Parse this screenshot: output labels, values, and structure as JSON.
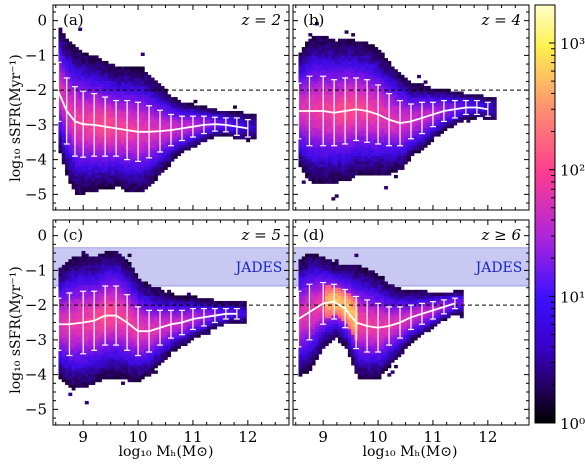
{
  "chart_data": {
    "type": "heatmap",
    "shared": {
      "xlabel": "log₁₀ Mₕ(M⊙)",
      "ylabel": "log₁₀ sSFR(Myr⁻¹)",
      "xlim": [
        8.45,
        12.75
      ],
      "ylim": [
        -5.45,
        0.45
      ],
      "xticks": [
        "9",
        "10",
        "11",
        "12"
      ],
      "yticks": [
        "0",
        "−1",
        "−2",
        "−3",
        "−4",
        "−5"
      ],
      "dashed_line_y": -2,
      "colorbar": {
        "label_ticks": [
          "10⁰",
          "10¹",
          "10²",
          "10³"
        ],
        "log_range": [
          0,
          3.3
        ],
        "colormap": "plasma"
      },
      "colors": {
        "median": "#ffffff",
        "dashed": "#000000",
        "band": "#c8c8f2",
        "jades_text": "#1c24c8"
      }
    },
    "panels": [
      {
        "panel_label": "(a)",
        "z_label": "z = 2",
        "jades": null,
        "median": {
          "x": [
            8.55,
            8.7,
            8.85,
            9.0,
            9.2,
            9.4,
            9.6,
            9.8,
            10.0,
            10.2,
            10.4,
            10.6,
            10.8,
            11.0,
            11.2,
            11.4,
            11.6,
            11.8,
            12.0
          ],
          "y": [
            -2.05,
            -2.6,
            -2.9,
            -2.98,
            -3.0,
            -3.05,
            -3.1,
            -3.15,
            -3.2,
            -3.2,
            -3.18,
            -3.15,
            -3.1,
            -3.05,
            -3.0,
            -2.98,
            -3.0,
            -3.05,
            -3.1
          ],
          "err": [
            0.85,
            0.95,
            1.0,
            0.95,
            0.9,
            0.85,
            0.8,
            0.85,
            0.85,
            0.75,
            0.6,
            0.45,
            0.35,
            0.3,
            0.25,
            0.2,
            0.2,
            0.25,
            0.25
          ]
        }
      },
      {
        "panel_label": "(b)",
        "z_label": "z = 4",
        "jades": null,
        "median": {
          "x": [
            8.55,
            8.75,
            9.0,
            9.2,
            9.4,
            9.6,
            9.8,
            10.0,
            10.2,
            10.4,
            10.6,
            10.8,
            11.0,
            11.2,
            11.4,
            11.6,
            11.8,
            12.0
          ],
          "y": [
            -2.6,
            -2.6,
            -2.6,
            -2.65,
            -2.6,
            -2.55,
            -2.6,
            -2.7,
            -2.85,
            -2.95,
            -2.9,
            -2.8,
            -2.7,
            -2.6,
            -2.55,
            -2.5,
            -2.5,
            -2.55
          ],
          "err": [
            0.8,
            1.0,
            1.0,
            0.95,
            0.95,
            0.9,
            0.9,
            0.85,
            0.75,
            0.65,
            0.5,
            0.45,
            0.35,
            0.3,
            0.25,
            0.2,
            0.2,
            0.2
          ]
        }
      },
      {
        "panel_label": "(c)",
        "z_label": "z = 5",
        "jades": {
          "label": "JADES",
          "y_range": [
            -1.45,
            -0.35
          ]
        },
        "median": {
          "x": [
            8.55,
            8.75,
            9.0,
            9.2,
            9.4,
            9.6,
            9.8,
            10.0,
            10.2,
            10.4,
            10.6,
            10.8,
            11.0,
            11.2,
            11.4,
            11.6,
            11.8
          ],
          "y": [
            -2.55,
            -2.55,
            -2.5,
            -2.45,
            -2.3,
            -2.3,
            -2.5,
            -2.75,
            -2.75,
            -2.65,
            -2.55,
            -2.5,
            -2.4,
            -2.35,
            -2.3,
            -2.25,
            -2.25
          ],
          "err": [
            0.75,
            0.9,
            0.9,
            0.85,
            0.85,
            0.85,
            0.8,
            0.7,
            0.6,
            0.5,
            0.4,
            0.35,
            0.3,
            0.25,
            0.2,
            0.15,
            0.15
          ]
        }
      },
      {
        "panel_label": "(d)",
        "z_label": "z ≥ 6",
        "jades": {
          "label": "JADES",
          "y_range": [
            -1.45,
            -0.35
          ]
        },
        "median": {
          "x": [
            8.55,
            8.75,
            9.0,
            9.2,
            9.4,
            9.6,
            9.8,
            10.0,
            10.2,
            10.4,
            10.6,
            10.8,
            11.0,
            11.2,
            11.4
          ],
          "y": [
            -2.4,
            -2.2,
            -1.95,
            -1.9,
            -2.1,
            -2.5,
            -2.6,
            -2.65,
            -2.6,
            -2.5,
            -2.35,
            -2.25,
            -2.15,
            -2.05,
            -1.95
          ],
          "err": [
            0.8,
            0.8,
            0.6,
            0.5,
            0.55,
            0.75,
            0.75,
            0.7,
            0.55,
            0.45,
            0.35,
            0.3,
            0.25,
            0.2,
            0.15
          ]
        }
      }
    ]
  }
}
